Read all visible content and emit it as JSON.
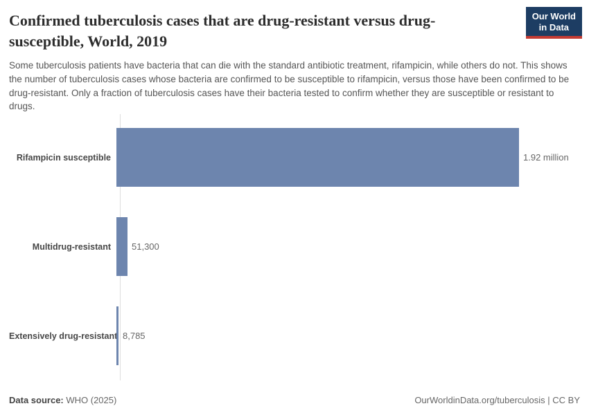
{
  "header": {
    "title": "Confirmed tuberculosis cases that are drug-resistant versus drug-susceptible, World, 2019",
    "subtitle": "Some tuberculosis patients have bacteria that can die with the standard antibiotic treatment, rifampicin, while others do not. This shows the number of tuberculosis cases whose bacteria are confirmed to be susceptible to rifampicin, versus those have been confirmed to be drug-resistant. Only a fraction of tuberculosis cases have their bacteria tested to confirm whether they are susceptible or resistant to drugs.",
    "logo": {
      "line1": "Our World",
      "line2": "in Data",
      "bg_color": "#1d3d63",
      "accent_color": "#c43b33"
    }
  },
  "chart_data": {
    "type": "bar",
    "orientation": "horizontal",
    "title": "Confirmed tuberculosis cases that are drug-resistant versus drug-susceptible, World, 2019",
    "categories": [
      "Rifampicin susceptible",
      "Multidrug-resistant",
      "Extensively drug-resistant"
    ],
    "values": [
      1920000,
      51300,
      8785
    ],
    "value_labels": [
      "1.92 million",
      "51,300",
      "8,785"
    ],
    "bar_color": "#6d85ae",
    "axis_line_color": "#dddddd",
    "xlim": [
      0,
      1920000
    ],
    "grid": false,
    "legend": "none"
  },
  "footer": {
    "data_source_label": "Data source:",
    "data_source_value": " WHO (2025)",
    "url": "OurWorldinData.org/tuberculosis",
    "separator": " | ",
    "license": "CC BY"
  }
}
